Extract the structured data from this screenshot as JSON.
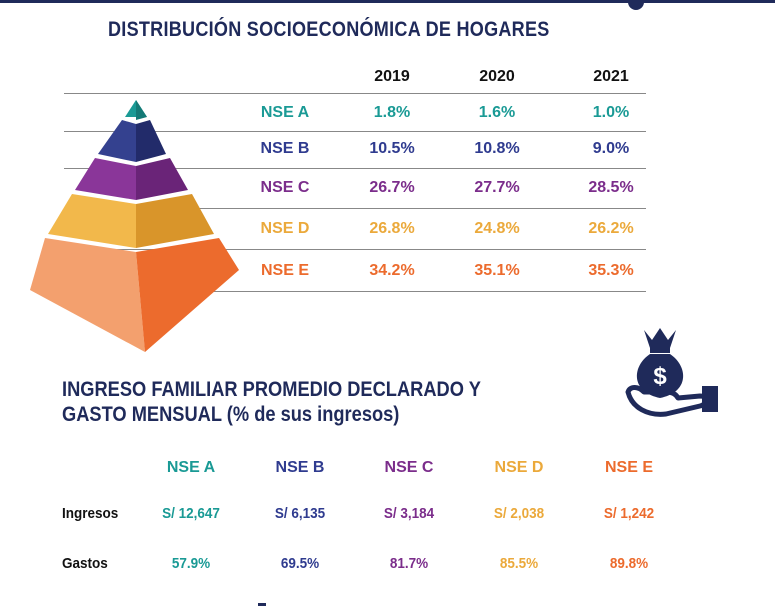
{
  "title": "DISTRIBUCIÓN SOCIOECONÓMICA DE HOGARES",
  "years": [
    "2019",
    "2020",
    "2021"
  ],
  "distribution": [
    {
      "label": "NSE A",
      "values": [
        "1.8%",
        "1.6%",
        "1.0%"
      ]
    },
    {
      "label": "NSE B",
      "values": [
        "10.5%",
        "10.8%",
        "9.0%"
      ]
    },
    {
      "label": "NSE C",
      "values": [
        "26.7%",
        "27.7%",
        "28.5%"
      ]
    },
    {
      "label": "NSE D",
      "values": [
        "26.8%",
        "24.8%",
        "26.2%"
      ]
    },
    {
      "label": "NSE E",
      "values": [
        "34.2%",
        "35.1%",
        "35.3%"
      ]
    }
  ],
  "income": {
    "title_bold": "INGRESO FAMILIAR PROMEDIO DECLARADO Y",
    "title_line2_bold": "GASTO MENSUAL",
    "title_line2_normal": "(% de sus ingresos)",
    "headers": [
      "NSE A",
      "NSE B",
      "NSE C",
      "NSE D",
      "NSE E"
    ],
    "rows": [
      {
        "label": "Ingresos",
        "values": [
          "S/ 12,647",
          "S/ 6,135",
          "S/ 3,184",
          "S/ 2,038",
          "S/ 1,242"
        ]
      },
      {
        "label": "Gastos",
        "values": [
          "57.9%",
          "69.5%",
          "81.7%",
          "85.5%",
          "89.8%"
        ]
      }
    ]
  },
  "colors": {
    "navy": "#1f2a5a",
    "nse_a": "#1a9a95",
    "nse_b": "#2f3b8f",
    "nse_c": "#7b2d8b",
    "nse_d": "#eba93b",
    "nse_e": "#ec6b2d"
  },
  "icons": {
    "pyramid": "pyramid-icon",
    "money": "money-bag-hand-icon"
  }
}
